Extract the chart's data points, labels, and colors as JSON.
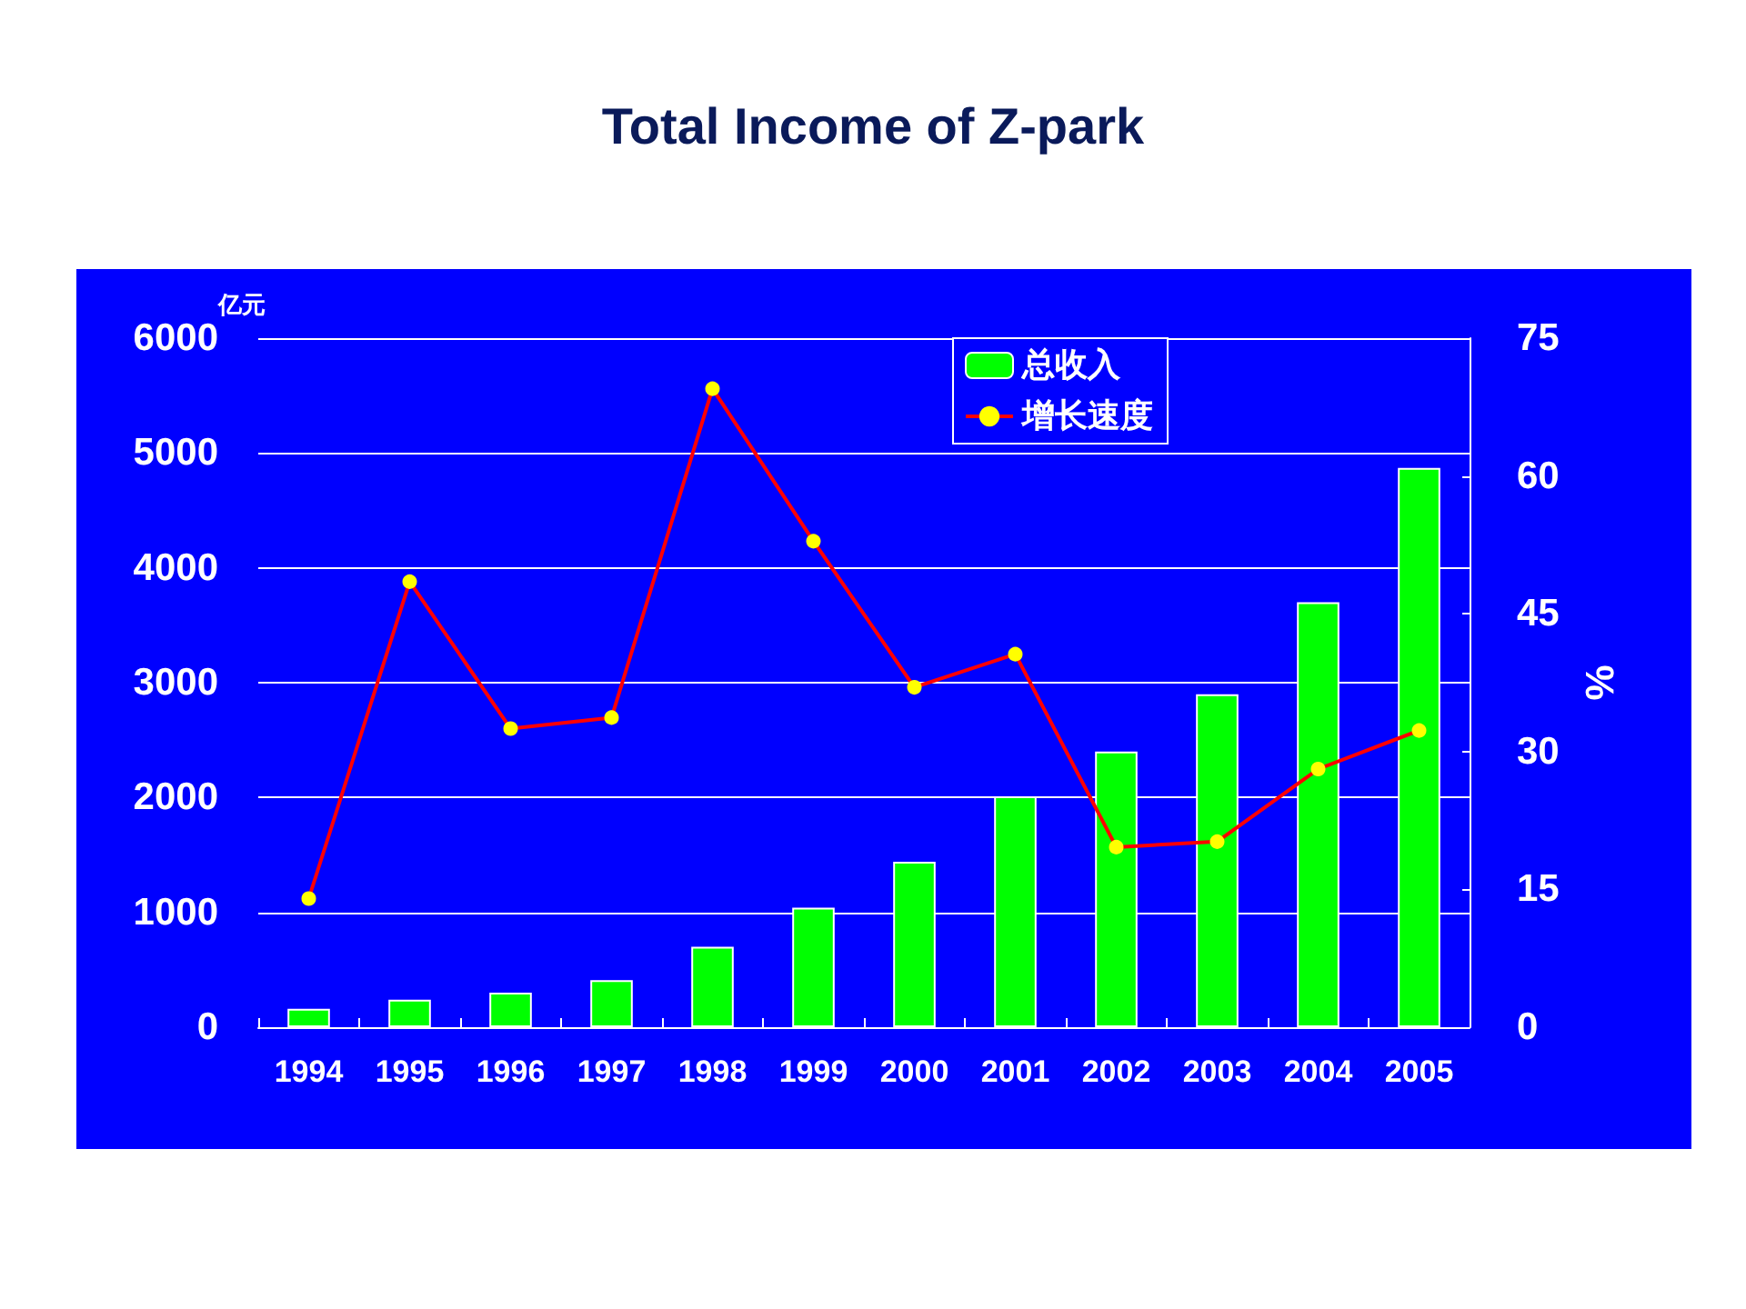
{
  "chart_data": {
    "type": "bar",
    "title": "Total Income of Z-park",
    "categories": [
      "1994",
      "1995",
      "1996",
      "1997",
      "1998",
      "1999",
      "2000",
      "2001",
      "2002",
      "2003",
      "2004",
      "2005"
    ],
    "series": [
      {
        "name": "总收入",
        "color": "#00ff00",
        "values": [
          160,
          240,
          300,
          410,
          700,
          1040,
          1440,
          2010,
          2400,
          2900,
          3700,
          4870
        ]
      },
      {
        "name": "增长速度",
        "type": "line",
        "axis": "y2",
        "color": "#ff0000",
        "values": [
          14.0,
          48.5,
          32.5,
          33.7,
          69.5,
          52.9,
          37.0,
          40.6,
          19.6,
          20.2,
          28.1,
          32.3
        ]
      }
    ],
    "ylabel": "亿元",
    "y2label": "%",
    "ylim": [
      0,
      6000
    ],
    "yticks": [
      0,
      1000,
      2000,
      3000,
      4000,
      5000,
      6000
    ],
    "y2lim": [
      0,
      75
    ],
    "y2ticks": [
      0,
      15,
      30,
      45,
      60,
      75
    ],
    "grid": "y",
    "legend": "top right",
    "marker": "circle"
  }
}
